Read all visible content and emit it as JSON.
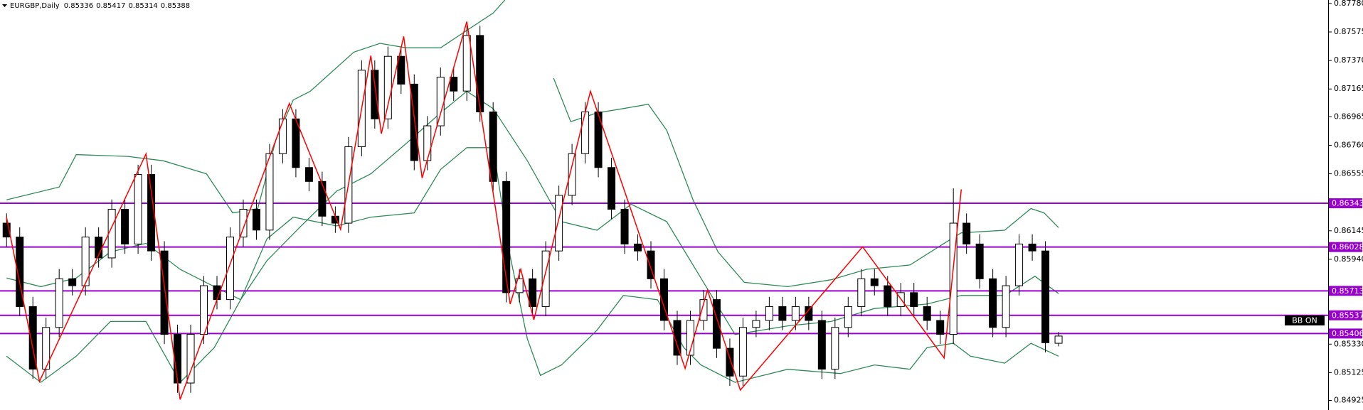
{
  "chart_data": {
    "type": "candlestick",
    "title": "EURGBP,Daily",
    "open": [
      0.862,
      0.861,
      0.856,
      0.8515,
      0.8545,
      0.858,
      0.8575,
      0.861,
      0.8595,
      0.863,
      0.8605,
      0.8655,
      0.86,
      0.854,
      0.8505,
      0.854,
      0.8575,
      0.8565,
      0.861,
      0.863,
      0.8615,
      0.867,
      0.8695,
      0.866,
      0.865,
      0.8625,
      0.862,
      0.8675,
      0.873,
      0.8695,
      0.874,
      0.872,
      0.8665,
      0.869,
      0.8725,
      0.8715,
      0.8755,
      0.87,
      0.865,
      0.857,
      0.858,
      0.856,
      0.86,
      0.864,
      0.867,
      0.87,
      0.866,
      0.863,
      0.8605,
      0.86,
      0.858,
      0.855,
      0.8525,
      0.855,
      0.8565,
      0.853,
      0.851,
      0.8545,
      0.855,
      0.856,
      0.855,
      0.856,
      0.855,
      0.8515,
      0.8545,
      0.856,
      0.858,
      0.8575,
      0.856,
      0.857,
      0.856,
      0.855,
      0.854,
      0.862,
      0.8605,
      0.858,
      0.8545,
      0.8575,
      0.8605,
      0.86,
      0.85336
    ],
    "high": [
      0.8627,
      0.8617,
      0.8567,
      0.8552,
      0.8587,
      0.8587,
      0.8617,
      0.8617,
      0.8637,
      0.8637,
      0.8662,
      0.8662,
      0.8607,
      0.8547,
      0.8547,
      0.8582,
      0.8582,
      0.8617,
      0.8637,
      0.8637,
      0.8677,
      0.8702,
      0.8702,
      0.8667,
      0.8657,
      0.8632,
      0.8682,
      0.8737,
      0.8737,
      0.8747,
      0.8747,
      0.8727,
      0.8697,
      0.8732,
      0.8732,
      0.8762,
      0.8762,
      0.8707,
      0.8657,
      0.8587,
      0.8587,
      0.8607,
      0.8647,
      0.8677,
      0.8707,
      0.8707,
      0.8667,
      0.8637,
      0.8612,
      0.8607,
      0.8587,
      0.8557,
      0.8557,
      0.8572,
      0.8572,
      0.8537,
      0.8552,
      0.8557,
      0.8567,
      0.8567,
      0.8567,
      0.8567,
      0.8557,
      0.8552,
      0.8567,
      0.8587,
      0.8587,
      0.8582,
      0.8577,
      0.8577,
      0.8567,
      0.8557,
      0.8645,
      0.8627,
      0.8612,
      0.8587,
      0.8582,
      0.8612,
      0.8612,
      0.8607,
      0.85417
    ],
    "low": [
      0.8603,
      0.8553,
      0.8508,
      0.8508,
      0.8538,
      0.8568,
      0.8568,
      0.8588,
      0.8588,
      0.8598,
      0.8598,
      0.8593,
      0.8533,
      0.8498,
      0.8498,
      0.8533,
      0.8558,
      0.8558,
      0.8603,
      0.8608,
      0.8608,
      0.8663,
      0.8653,
      0.8643,
      0.8618,
      0.8613,
      0.8613,
      0.8668,
      0.8688,
      0.8688,
      0.8713,
      0.8658,
      0.8658,
      0.8683,
      0.8708,
      0.8708,
      0.8693,
      0.8643,
      0.8563,
      0.8563,
      0.8553,
      0.8553,
      0.8593,
      0.8633,
      0.8663,
      0.8653,
      0.8623,
      0.8598,
      0.8593,
      0.8573,
      0.8543,
      0.8518,
      0.8518,
      0.8543,
      0.8523,
      0.8503,
      0.8503,
      0.8538,
      0.8543,
      0.8543,
      0.8543,
      0.8543,
      0.8508,
      0.8508,
      0.8538,
      0.8553,
      0.8568,
      0.8553,
      0.8553,
      0.8553,
      0.8543,
      0.8533,
      0.8533,
      0.8598,
      0.8573,
      0.8538,
      0.8538,
      0.8568,
      0.8593,
      0.8527,
      0.85314
    ],
    "close": [
      0.861,
      0.856,
      0.8515,
      0.8545,
      0.858,
      0.8575,
      0.861,
      0.8595,
      0.863,
      0.8605,
      0.8655,
      0.86,
      0.854,
      0.8505,
      0.854,
      0.8575,
      0.8565,
      0.861,
      0.863,
      0.8615,
      0.867,
      0.8695,
      0.866,
      0.865,
      0.8625,
      0.862,
      0.8675,
      0.873,
      0.8695,
      0.874,
      0.872,
      0.8665,
      0.869,
      0.8725,
      0.8715,
      0.8755,
      0.87,
      0.865,
      0.857,
      0.858,
      0.856,
      0.86,
      0.864,
      0.867,
      0.87,
      0.866,
      0.863,
      0.8605,
      0.86,
      0.858,
      0.855,
      0.8525,
      0.855,
      0.8565,
      0.853,
      0.851,
      0.8545,
      0.855,
      0.856,
      0.855,
      0.856,
      0.855,
      0.8515,
      0.8545,
      0.856,
      0.858,
      0.8575,
      0.856,
      0.857,
      0.856,
      0.855,
      0.854,
      0.862,
      0.8605,
      0.858,
      0.8545,
      0.8575,
      0.8605,
      0.86,
      0.8534,
      0.85388
    ],
    "bull_color": "#ffffff",
    "bear_color": "#000000",
    "xlim": [
      -0.5,
      100.5
    ],
    "ylim": [
      0.84856,
      0.87805
    ],
    "yticks": [
      {
        "value": 0.8778,
        "label": "0.87780"
      },
      0.87575,
      {
        "value": 0.8737,
        "label": "0.87370"
      },
      0.87165,
      0.86965,
      {
        "value": 0.8676,
        "label": "0.86760"
      },
      0.86555,
      0.86145,
      {
        "value": 0.8594,
        "label": "0.85940"
      },
      {
        "value": 0.8533,
        "label": "0.85330"
      },
      0.85125,
      0.84925
    ],
    "levels": [
      0.86343,
      0.86028,
      0.85713,
      0.85537,
      0.85406
    ],
    "level_color": "#9900cc",
    "zigzag": {
      "color": "#ff0000",
      "x": [
        0,
        2.5,
        10.6,
        13.2,
        21.5,
        25.4,
        27.7,
        28.5,
        30.2,
        31.6,
        35,
        38.3,
        39.1,
        40.1,
        44.4,
        51.6,
        53.3,
        55.8,
        65.1,
        71.3,
        72.6
      ],
      "values": [
        0.86243,
        0.85062,
        0.86698,
        0.84931,
        0.87061,
        0.86155,
        0.87405,
        0.86843,
        0.87543,
        0.86524,
        0.87649,
        0.85618,
        0.85868,
        0.85505,
        0.87149,
        0.85155,
        0.85718,
        0.84999,
        0.8603,
        0.8523,
        0.86443
      ]
    },
    "bands": [
      {
        "color": "#2e8b57",
        "x": [
          0,
          4,
          5.3,
          9.2,
          11.9,
          15.2,
          17.2,
          19.1,
          20.5,
          21.8,
          23.1,
          26.4,
          28.4,
          30.4,
          33,
          35,
          37,
          37.9,
          40.6,
          41.6,
          42.9,
          44.9,
          46.9,
          48.8,
          50.2,
          52.2,
          54.1,
          56.1,
          59.4,
          62.7,
          65.4,
          68.7,
          71.3,
          72.6,
          75.9,
          77.9,
          78.9,
          80
        ],
        "values": [
          0.86368,
          0.8646,
          0.86693,
          0.8668,
          0.86649,
          0.86555,
          0.86274,
          0.86305,
          0.86805,
          0.87086,
          0.87149,
          0.8743,
          0.87493,
          0.87461,
          0.87461,
          0.87586,
          0.87711,
          0.87805,
          null,
          0.87243,
          0.8693,
          0.86993,
          0.87024,
          0.87055,
          0.86868,
          0.86368,
          0.85993,
          0.85774,
          0.85743,
          0.85793,
          0.85868,
          0.85899,
          0.86055,
          0.8613,
          0.86149,
          0.86305,
          0.86274,
          0.86168
        ]
      },
      {
        "color": "#2e8b57",
        "x": [
          0,
          2.6,
          5.3,
          7.9,
          10.6,
          13.2,
          15.8,
          17.8,
          19.8,
          22.4,
          25.1,
          27.7,
          30.4,
          33,
          35,
          37,
          39.6,
          42.2,
          44.9,
          47.5,
          50.2,
          52.8,
          55.4,
          59.4,
          62.7,
          66,
          70,
          72.6,
          75.9,
          78.2,
          80
        ],
        "values": [
          0.85805,
          0.85743,
          0.85805,
          0.85993,
          0.86055,
          0.85868,
          0.85743,
          0.85649,
          0.8593,
          0.8618,
          0.8643,
          0.86555,
          0.86774,
          0.86993,
          0.87149,
          0.87024,
          0.86649,
          0.86211,
          0.86149,
          0.86336,
          0.86211,
          0.85805,
          0.85399,
          0.85461,
          0.85493,
          0.85586,
          0.85618,
          0.8568,
          0.8568,
          0.85818,
          0.85693
        ]
      },
      {
        "color": "#2e8b57",
        "x": [
          0,
          2.6,
          5.3,
          7.9,
          10.6,
          13.2,
          15.8,
          17.8,
          19.8,
          21.8,
          25.1,
          27.7,
          31,
          33,
          35,
          37,
          38.3,
          39.6,
          40.6,
          42.2,
          44.9,
          46.9,
          49.5,
          51.5,
          52.8,
          55.4,
          59.4,
          63.4,
          66,
          68.7,
          70,
          72,
          73.3,
          75.9,
          77.9,
          80
        ],
        "values": [
          0.85243,
          0.85055,
          0.85243,
          0.85493,
          0.85493,
          0.85055,
          0.85305,
          0.85649,
          0.86086,
          0.86243,
          0.8618,
          0.86243,
          0.86274,
          0.86586,
          0.86743,
          0.86743,
          0.85961,
          0.85368,
          0.85105,
          0.8518,
          0.8543,
          0.8568,
          0.85649,
          0.85305,
          0.8518,
          0.85055,
          0.85149,
          0.85118,
          0.8518,
          0.85149,
          0.85305,
          0.85336,
          0.85243,
          0.85193,
          0.85336,
          0.85243
        ]
      }
    ],
    "badge": "BB ON"
  }
}
